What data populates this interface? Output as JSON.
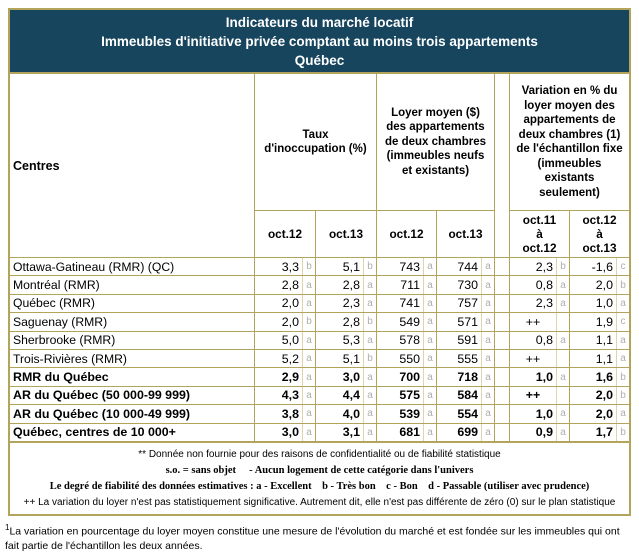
{
  "title": {
    "line1": "Indicateurs du marché locatif",
    "line2": "Immeubles d'initiative privée comptant au moins trois appartements",
    "line3": "Québec"
  },
  "table": {
    "centres_header": "Centres",
    "groups": {
      "taux": "Taux\nd'inoccupation (%)",
      "loyer": "Loyer moyen ($)\ndes appartements\nde deux chambres\n(immeubles neufs\net existants)",
      "variation": "Variation en % du\nloyer moyen des\nappartements de\ndeux chambres (1)\nde l'échantillon fixe\n(immeubles\nexistants\nseulement)"
    },
    "subheaders": [
      "oct.12",
      "oct.13",
      "oct.12",
      "oct.13",
      "oct.11\nà\noct.12",
      "oct.12\nà\noct.13"
    ],
    "rows": [
      {
        "label": "Ottawa-Gatineau (RMR) (QC)",
        "bold": false,
        "cells": [
          {
            "v": "3,3",
            "g": "b"
          },
          {
            "v": "5,1",
            "g": "b"
          },
          {
            "v": "743",
            "g": "a"
          },
          {
            "v": "744",
            "g": "a"
          },
          {
            "v": "2,3",
            "g": "b"
          },
          {
            "v": "-1,6",
            "g": "c"
          }
        ]
      },
      {
        "label": "Montréal (RMR)",
        "bold": false,
        "cells": [
          {
            "v": "2,8",
            "g": "a"
          },
          {
            "v": "2,8",
            "g": "a"
          },
          {
            "v": "711",
            "g": "a"
          },
          {
            "v": "730",
            "g": "a"
          },
          {
            "v": "0,8",
            "g": "a"
          },
          {
            "v": "2,0",
            "g": "b"
          }
        ]
      },
      {
        "label": "Québec (RMR)",
        "bold": false,
        "cells": [
          {
            "v": "2,0",
            "g": "a"
          },
          {
            "v": "2,3",
            "g": "a"
          },
          {
            "v": "741",
            "g": "a"
          },
          {
            "v": "757",
            "g": "a"
          },
          {
            "v": "2,3",
            "g": "a"
          },
          {
            "v": "1,0",
            "g": "a"
          }
        ]
      },
      {
        "label": "Saguenay (RMR)",
        "bold": false,
        "cells": [
          {
            "v": "2,0",
            "g": "b"
          },
          {
            "v": "2,8",
            "g": "b"
          },
          {
            "v": "549",
            "g": "a"
          },
          {
            "v": "571",
            "g": "a"
          },
          {
            "v": "++",
            "g": ""
          },
          {
            "v": "1,9",
            "g": "c"
          }
        ]
      },
      {
        "label": "Sherbrooke (RMR)",
        "bold": false,
        "cells": [
          {
            "v": "5,0",
            "g": "a"
          },
          {
            "v": "5,3",
            "g": "a"
          },
          {
            "v": "578",
            "g": "a"
          },
          {
            "v": "591",
            "g": "a"
          },
          {
            "v": "0,8",
            "g": "a"
          },
          {
            "v": "1,1",
            "g": "a"
          }
        ]
      },
      {
        "label": "Trois-Rivières (RMR)",
        "bold": false,
        "cells": [
          {
            "v": "5,2",
            "g": "a"
          },
          {
            "v": "5,1",
            "g": "b"
          },
          {
            "v": "550",
            "g": "a"
          },
          {
            "v": "555",
            "g": "a"
          },
          {
            "v": "++",
            "g": ""
          },
          {
            "v": "1,1",
            "g": "a"
          }
        ]
      },
      {
        "label": "RMR du Québec",
        "bold": true,
        "cells": [
          {
            "v": "2,9",
            "g": "a"
          },
          {
            "v": "3,0",
            "g": "a"
          },
          {
            "v": "700",
            "g": "a"
          },
          {
            "v": "718",
            "g": "a"
          },
          {
            "v": "1,0",
            "g": "a"
          },
          {
            "v": "1,6",
            "g": "b"
          }
        ]
      },
      {
        "label": "AR du Québec (50 000-99 999)",
        "bold": true,
        "cells": [
          {
            "v": "4,3",
            "g": "a"
          },
          {
            "v": "4,4",
            "g": "a"
          },
          {
            "v": "575",
            "g": "a"
          },
          {
            "v": "584",
            "g": "a"
          },
          {
            "v": "++",
            "g": ""
          },
          {
            "v": "2,0",
            "g": "b"
          }
        ]
      },
      {
        "label": "AR du Québec (10 000-49 999)",
        "bold": true,
        "cells": [
          {
            "v": "3,8",
            "g": "a"
          },
          {
            "v": "4,0",
            "g": "a"
          },
          {
            "v": "539",
            "g": "a"
          },
          {
            "v": "554",
            "g": "a"
          },
          {
            "v": "1,0",
            "g": "a"
          },
          {
            "v": "2,0",
            "g": "a"
          }
        ]
      },
      {
        "label": "Québec, centres de 10 000+",
        "bold": true,
        "cells": [
          {
            "v": "3,0",
            "g": "a"
          },
          {
            "v": "3,1",
            "g": "a"
          },
          {
            "v": "681",
            "g": "a"
          },
          {
            "v": "699",
            "g": "a"
          },
          {
            "v": "0,9",
            "g": "a"
          },
          {
            "v": "1,7",
            "g": "b"
          }
        ]
      }
    ]
  },
  "footnotes": [
    {
      "text": "** Donnée non fournie pour des raisons de confidentialité ou de fiabilité statistique",
      "serif": false
    },
    {
      "text": "s.o. = sans objet     - Aucun logement de cette catégorie dans l'univers",
      "serif": true
    },
    {
      "text": "Le degré de fiabilité des données estimatives : a - Excellent    b - Très bon    c - Bon    d - Passable (utiliser avec prudence)",
      "serif": true
    },
    {
      "text": "++ La variation du loyer n'est pas statistiquement significative. Autrement dit, elle n'est pas différente de zéro (0) sur le plan statistique",
      "serif": false
    }
  ],
  "external_note": {
    "sup": "1",
    "text": "La variation en pourcentage du loyer moyen constitue une mesure de l'évolution du marché et est fondée sur les immeubles qui ont fait partie de l'échantillon les deux années."
  },
  "colors": {
    "navy": "#17455e",
    "gold": "#b3a45c",
    "subheader_gray": "#c0c0c0",
    "grade_letter_gray": "#aeaeae"
  }
}
